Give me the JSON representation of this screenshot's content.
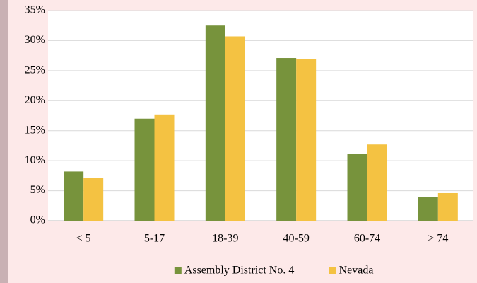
{
  "chart_data": {
    "type": "bar",
    "categories": [
      "< 5",
      "5-17",
      "18-39",
      "40-59",
      "60-74",
      "> 74"
    ],
    "series": [
      {
        "name": "Assembly District No. 4",
        "color": "#77933c",
        "values": [
          8.2,
          17.0,
          32.5,
          27.1,
          11.1,
          3.9
        ]
      },
      {
        "name": "Nevada",
        "color": "#f4c242",
        "values": [
          7.1,
          17.7,
          30.7,
          26.9,
          12.7,
          4.6
        ]
      }
    ],
    "ylim": [
      0,
      35
    ],
    "yticks": [
      {
        "value": 0,
        "label": "0%"
      },
      {
        "value": 5,
        "label": "5%"
      },
      {
        "value": 10,
        "label": "10%"
      },
      {
        "value": 15,
        "label": "15%"
      },
      {
        "value": 20,
        "label": "20%"
      },
      {
        "value": 25,
        "label": "25%"
      },
      {
        "value": 30,
        "label": "30%"
      },
      {
        "value": 35,
        "label": "35%"
      }
    ],
    "grid": true,
    "legend": "bottom"
  }
}
